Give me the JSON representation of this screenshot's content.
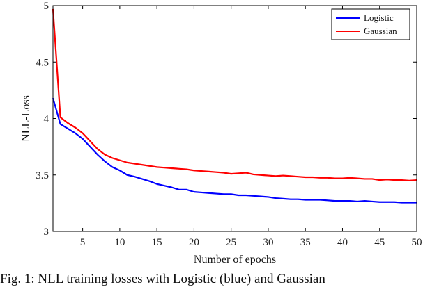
{
  "chart_data": {
    "type": "line",
    "title": "",
    "xlabel": "Number of epochs",
    "ylabel": "NLL-Loss",
    "xlim": [
      1,
      50
    ],
    "ylim": [
      3,
      5
    ],
    "xticks": [
      5,
      10,
      15,
      20,
      25,
      30,
      35,
      40,
      45,
      50
    ],
    "yticks": [
      3,
      3.5,
      4,
      4.5,
      5
    ],
    "grid": false,
    "legend_position": "top-right",
    "x": [
      1,
      2,
      3,
      4,
      5,
      6,
      7,
      8,
      9,
      10,
      11,
      12,
      13,
      14,
      15,
      16,
      17,
      18,
      19,
      20,
      21,
      22,
      23,
      24,
      25,
      26,
      27,
      28,
      29,
      30,
      31,
      32,
      33,
      34,
      35,
      36,
      37,
      38,
      39,
      40,
      41,
      42,
      43,
      44,
      45,
      46,
      47,
      48,
      49,
      50
    ],
    "series": [
      {
        "name": "Logistic",
        "color": "#0000ff",
        "values": [
          4.18,
          3.95,
          3.91,
          3.87,
          3.82,
          3.75,
          3.68,
          3.62,
          3.57,
          3.54,
          3.5,
          3.485,
          3.465,
          3.445,
          3.42,
          3.405,
          3.39,
          3.37,
          3.37,
          3.35,
          3.345,
          3.34,
          3.335,
          3.33,
          3.33,
          3.32,
          3.32,
          3.315,
          3.31,
          3.305,
          3.295,
          3.29,
          3.285,
          3.285,
          3.28,
          3.28,
          3.28,
          3.275,
          3.27,
          3.27,
          3.27,
          3.265,
          3.27,
          3.265,
          3.26,
          3.26,
          3.26,
          3.255,
          3.255,
          3.255
        ]
      },
      {
        "name": "Gaussian",
        "color": "#ff0000",
        "values": [
          4.97,
          4.01,
          3.96,
          3.92,
          3.87,
          3.8,
          3.73,
          3.68,
          3.65,
          3.63,
          3.61,
          3.6,
          3.59,
          3.58,
          3.57,
          3.565,
          3.56,
          3.555,
          3.55,
          3.54,
          3.535,
          3.53,
          3.525,
          3.52,
          3.51,
          3.515,
          3.52,
          3.505,
          3.5,
          3.495,
          3.49,
          3.495,
          3.49,
          3.485,
          3.48,
          3.48,
          3.475,
          3.475,
          3.47,
          3.47,
          3.475,
          3.47,
          3.465,
          3.465,
          3.455,
          3.46,
          3.455,
          3.455,
          3.45,
          3.455
        ]
      }
    ]
  },
  "caption": "Fig. 1: NLL training losses with Logistic (blue) and Gaussian"
}
